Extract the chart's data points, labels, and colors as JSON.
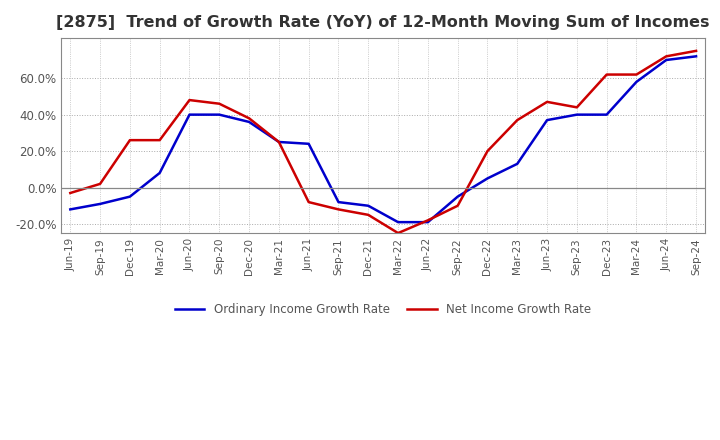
{
  "title": "[2875]  Trend of Growth Rate (YoY) of 12-Month Moving Sum of Incomes",
  "title_fontsize": 11.5,
  "title_color": "#333333",
  "legend_labels": [
    "Ordinary Income Growth Rate",
    "Net Income Growth Rate"
  ],
  "line_colors": [
    "#0000cc",
    "#cc0000"
  ],
  "x_labels": [
    "Jun-19",
    "Sep-19",
    "Dec-19",
    "Mar-20",
    "Jun-20",
    "Sep-20",
    "Dec-20",
    "Mar-21",
    "Jun-21",
    "Sep-21",
    "Dec-21",
    "Mar-22",
    "Jun-22",
    "Sep-22",
    "Dec-22",
    "Mar-23",
    "Jun-23",
    "Sep-23",
    "Dec-23",
    "Mar-24",
    "Jun-24",
    "Sep-24"
  ],
  "ordinary_income": [
    -12,
    -9,
    -5,
    8,
    40,
    40,
    36,
    25,
    24,
    -8,
    -10,
    -19,
    -19,
    -5,
    5,
    13,
    37,
    40,
    40,
    58,
    70,
    72
  ],
  "net_income": [
    -3,
    2,
    26,
    26,
    48,
    46,
    38,
    25,
    -8,
    -12,
    -15,
    -25,
    -18,
    -10,
    20,
    37,
    47,
    44,
    62,
    62,
    72,
    75
  ],
  "ylim": [
    -25,
    82
  ],
  "yticks": [
    -20,
    0,
    20,
    40,
    60
  ],
  "background_color": "#ffffff",
  "grid_color": "#aaaaaa",
  "plot_bg_color": "#ffffff"
}
